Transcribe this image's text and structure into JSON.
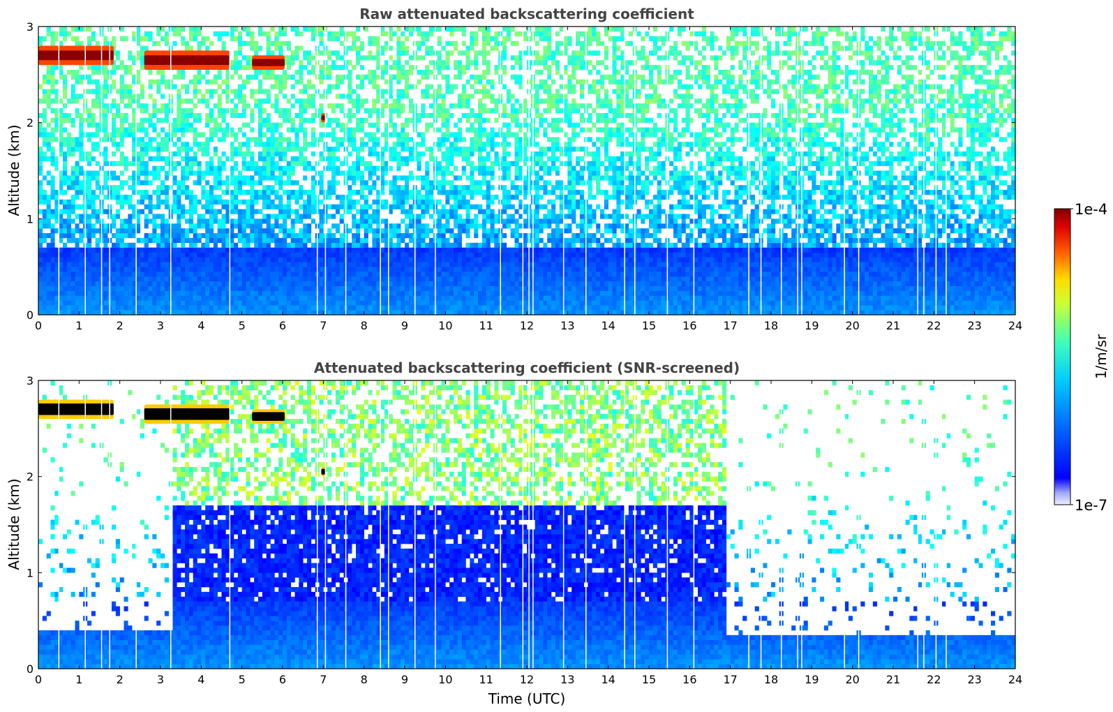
{
  "chart_data": [
    {
      "type": "heatmap",
      "title": "Raw attenuated backscattering coefficient",
      "xlabel": "",
      "ylabel": "Altitude (km)",
      "xlim": [
        0,
        24
      ],
      "ylim": [
        0,
        3
      ],
      "xticks": [
        "0",
        "1",
        "2",
        "3",
        "4",
        "5",
        "6",
        "7",
        "8",
        "9",
        "10",
        "11",
        "12",
        "13",
        "14",
        "15",
        "16",
        "17",
        "18",
        "19",
        "20",
        "21",
        "22",
        "23",
        "24"
      ],
      "yticks": [
        "0",
        "1",
        "2",
        "3"
      ],
      "cloud_layers": [
        {
          "start": 0.0,
          "end": 1.85,
          "bottom": 2.6,
          "top": 2.8
        },
        {
          "start": 2.6,
          "end": 4.7,
          "bottom": 2.55,
          "top": 2.75
        },
        {
          "start": 5.25,
          "end": 6.05,
          "bottom": 2.55,
          "top": 2.7
        },
        {
          "start": 6.95,
          "end": 7.05,
          "bottom": 2.0,
          "top": 2.1
        }
      ],
      "gap_times": [
        0.5,
        1.15,
        1.55,
        1.75,
        2.4,
        3.25,
        4.7,
        6.85,
        7.05,
        7.55,
        8.4,
        8.6,
        9.25,
        9.75,
        11.35,
        11.9,
        12.05,
        12.15,
        12.9,
        13.45,
        14.4,
        14.65,
        15.45,
        16.1,
        17.45,
        17.75,
        18.25,
        18.65,
        18.75,
        19.8,
        20.15,
        21.6,
        21.75,
        22.05,
        22.3
      ]
    },
    {
      "type": "heatmap",
      "title": "Attenuated backscattering coefficient (SNR-screened)",
      "xlabel": "Time (UTC)",
      "ylabel": "Altitude (km)",
      "xlim": [
        0,
        24
      ],
      "ylim": [
        0,
        3
      ],
      "xticks": [
        "0",
        "1",
        "2",
        "3",
        "4",
        "5",
        "6",
        "7",
        "8",
        "9",
        "10",
        "11",
        "12",
        "13",
        "14",
        "15",
        "16",
        "17",
        "18",
        "19",
        "20",
        "21",
        "22",
        "23",
        "24"
      ],
      "yticks": [
        "0",
        "1",
        "2",
        "3"
      ],
      "screened_low_signal_periods": [
        {
          "start": 0.0,
          "end": 3.3,
          "valid_top": 0.38
        },
        {
          "start": 16.9,
          "end": 24.0,
          "valid_top": 0.35
        }
      ],
      "colorbar": {
        "label": "1/m/sr",
        "min_label": "1e-7",
        "max_label": "1e-4",
        "scale": "log",
        "colormap": "jet"
      }
    }
  ]
}
